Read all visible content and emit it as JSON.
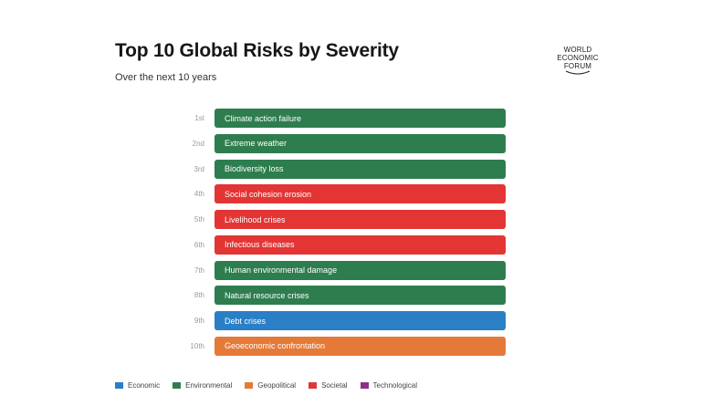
{
  "header": {
    "title": "Top 10 Global Risks by Severity",
    "subtitle": "Over the next 10 years"
  },
  "logo": {
    "lines": [
      "WORLD",
      "ECONOMIC",
      "FORUM"
    ]
  },
  "colors": {
    "Economic": "#2a7fc6",
    "Environmental": "#2e7d4e",
    "Geopolitical": "#e57a38",
    "Societal": "#e23534",
    "Technological": "#8e2f8a"
  },
  "legend": [
    {
      "label": "Economic",
      "color": "#2a7fc6"
    },
    {
      "label": "Environmental",
      "color": "#2e7d4e"
    },
    {
      "label": "Geopolitical",
      "color": "#e57a38"
    },
    {
      "label": "Societal",
      "color": "#e23534"
    },
    {
      "label": "Technological",
      "color": "#8e2f8a"
    }
  ],
  "chart_data": {
    "type": "bar",
    "title": "Top 10 Global Risks by Severity",
    "subtitle": "Over the next 10 years",
    "categories": [
      "1st",
      "2nd",
      "3rd",
      "4th",
      "5th",
      "6th",
      "7th",
      "8th",
      "9th",
      "10th"
    ],
    "labels": [
      "Climate action failure",
      "Extreme weather",
      "Biodiversity loss",
      "Social cohesion erosion",
      "Livelihood crises",
      "Infectious diseases",
      "Human environmental damage",
      "Natural resource crises",
      "Debt crises",
      "Geoeconomic confrontation"
    ],
    "groups": [
      "Environmental",
      "Environmental",
      "Environmental",
      "Societal",
      "Societal",
      "Societal",
      "Environmental",
      "Environmental",
      "Economic",
      "Geopolitical"
    ],
    "legend_position": "bottom-left",
    "grid": false
  }
}
